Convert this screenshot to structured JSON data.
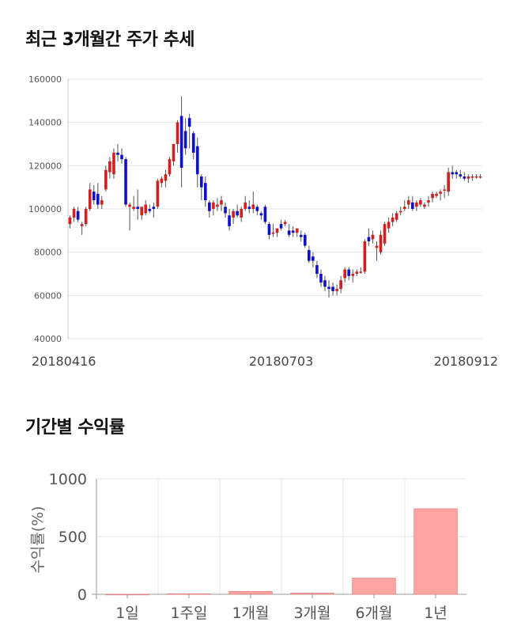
{
  "titles": {
    "price": "최근 3개월간 주가 추세",
    "returns": "기간별 수익률"
  },
  "colors": {
    "up": "#d21f1f",
    "down": "#1010cc",
    "wick": "#555555",
    "bar_fill": "#ffa3a3",
    "bar_stroke": "#e08585",
    "grid": "#e6e6e6"
  },
  "chart_data": [
    {
      "type": "candlestick",
      "title": "최근 3개월간 주가 추세",
      "ylim": [
        40000,
        160000
      ],
      "y_ticks": [
        "160000",
        "140000",
        "120000",
        "100000",
        "80000",
        "60000",
        "40000"
      ],
      "y_tick_values": [
        160000,
        140000,
        120000,
        100000,
        80000,
        60000,
        40000
      ],
      "x_ticks": [
        "20180416",
        "20180703",
        "20180912"
      ],
      "x_tick_index": [
        0,
        53,
        103
      ],
      "grid": true,
      "candles": [
        [
          93000,
          97000,
          91000,
          96000
        ],
        [
          96000,
          101000,
          94000,
          100000
        ],
        [
          99000,
          101000,
          94000,
          95000
        ],
        [
          92000,
          94000,
          88000,
          93000
        ],
        [
          93000,
          101000,
          92000,
          100000
        ],
        [
          100000,
          112000,
          99000,
          109000
        ],
        [
          108000,
          111000,
          102000,
          104000
        ],
        [
          107000,
          112000,
          100000,
          102000
        ],
        [
          102000,
          106000,
          100000,
          104000
        ],
        [
          109000,
          120000,
          108000,
          118000
        ],
        [
          117000,
          124000,
          114000,
          122000
        ],
        [
          116000,
          128000,
          114000,
          126000
        ],
        [
          126000,
          130000,
          122000,
          125000
        ],
        [
          125000,
          128000,
          121000,
          123000
        ],
        [
          123000,
          124000,
          101000,
          102000
        ],
        [
          101000,
          103000,
          90000,
          102000
        ],
        [
          100000,
          106000,
          99000,
          101000
        ],
        [
          101000,
          109000,
          95000,
          100000
        ],
        [
          97000,
          101000,
          95000,
          101000
        ],
        [
          98000,
          104000,
          97000,
          102000
        ],
        [
          100000,
          102000,
          98000,
          99000
        ],
        [
          101000,
          103000,
          96000,
          100000
        ],
        [
          101000,
          114000,
          100000,
          113000
        ],
        [
          112000,
          115000,
          110000,
          114000
        ],
        [
          113000,
          118000,
          110000,
          116000
        ],
        [
          116000,
          124000,
          115000,
          123000
        ],
        [
          122000,
          130000,
          120000,
          130000
        ],
        [
          130000,
          141000,
          126000,
          140000
        ],
        [
          143000,
          152000,
          110000,
          119000
        ],
        [
          136000,
          142000,
          125000,
          128000
        ],
        [
          142000,
          144000,
          128000,
          138000
        ],
        [
          135000,
          136000,
          123000,
          126000
        ],
        [
          129000,
          133000,
          110000,
          116000
        ],
        [
          115000,
          116000,
          104000,
          110000
        ],
        [
          112000,
          115000,
          101000,
          104000
        ],
        [
          103000,
          104000,
          96000,
          99000
        ],
        [
          100000,
          104000,
          97000,
          103000
        ],
        [
          101000,
          105000,
          99000,
          102000
        ],
        [
          102000,
          106000,
          99000,
          104000
        ],
        [
          101000,
          103000,
          96000,
          98000
        ],
        [
          97000,
          100000,
          90000,
          92000
        ],
        [
          96000,
          100000,
          93000,
          99000
        ],
        [
          99000,
          102000,
          96000,
          97000
        ],
        [
          96000,
          101000,
          94000,
          100000
        ],
        [
          100000,
          106000,
          99000,
          103000
        ],
        [
          101000,
          104000,
          98000,
          100000
        ],
        [
          100000,
          108000,
          98000,
          102000
        ],
        [
          101000,
          102000,
          97000,
          99000
        ],
        [
          98000,
          99000,
          95000,
          97000
        ],
        [
          101000,
          102000,
          93000,
          94000
        ],
        [
          93000,
          94000,
          86000,
          88000
        ],
        [
          89000,
          93000,
          87000,
          89000
        ],
        [
          89000,
          91000,
          87000,
          91000
        ],
        [
          93000,
          95000,
          90000,
          91000
        ],
        [
          93000,
          95000,
          92000,
          94000
        ],
        [
          90000,
          93000,
          87000,
          88000
        ],
        [
          90000,
          92000,
          87000,
          89000
        ],
        [
          89000,
          91000,
          87000,
          91000
        ],
        [
          88000,
          90000,
          85000,
          87000
        ],
        [
          88000,
          89000,
          82000,
          83000
        ],
        [
          81000,
          83000,
          75000,
          76000
        ],
        [
          78000,
          80000,
          73000,
          76000
        ],
        [
          74000,
          76000,
          68000,
          70000
        ],
        [
          70000,
          72000,
          64000,
          66000
        ],
        [
          67000,
          69000,
          62000,
          64000
        ],
        [
          64000,
          67000,
          59000,
          63000
        ],
        [
          64000,
          66000,
          60000,
          62000
        ],
        [
          62000,
          65000,
          60000,
          63000
        ],
        [
          63000,
          69000,
          61000,
          67000
        ],
        [
          68000,
          73000,
          66000,
          72000
        ],
        [
          72000,
          73000,
          67000,
          69000
        ],
        [
          69000,
          72000,
          66000,
          70000
        ],
        [
          70000,
          72000,
          69000,
          71000
        ],
        [
          71000,
          73000,
          70000,
          71000
        ],
        [
          71000,
          86000,
          70000,
          85000
        ],
        [
          87000,
          91000,
          83000,
          85000
        ],
        [
          86000,
          90000,
          84000,
          88000
        ],
        [
          82000,
          85000,
          76000,
          83000
        ],
        [
          80000,
          90000,
          79000,
          88000
        ],
        [
          84000,
          94000,
          83000,
          93000
        ],
        [
          91000,
          96000,
          89000,
          94000
        ],
        [
          94000,
          98000,
          92000,
          96000
        ],
        [
          95000,
          99000,
          94000,
          98000
        ],
        [
          99000,
          101000,
          97000,
          99000
        ],
        [
          100000,
          104000,
          99000,
          101000
        ],
        [
          102000,
          106000,
          100000,
          104000
        ],
        [
          103000,
          106000,
          99000,
          100000
        ],
        [
          101000,
          104000,
          99000,
          103000
        ],
        [
          102000,
          105000,
          101000,
          104000
        ],
        [
          101000,
          103000,
          100000,
          102000
        ],
        [
          103000,
          106000,
          101000,
          104000
        ],
        [
          105000,
          108000,
          103000,
          107000
        ],
        [
          106000,
          108000,
          105000,
          107000
        ],
        [
          107000,
          109000,
          104000,
          108000
        ],
        [
          109000,
          111000,
          105000,
          109000
        ],
        [
          108000,
          119000,
          106000,
          117000
        ],
        [
          117000,
          120000,
          114000,
          116000
        ],
        [
          117000,
          118000,
          114000,
          116000
        ],
        [
          116000,
          118000,
          114000,
          115000
        ],
        [
          115000,
          117000,
          113000,
          114000
        ],
        [
          114000,
          116000,
          112000,
          115000
        ],
        [
          115000,
          116000,
          113000,
          115000
        ],
        [
          115000,
          116000,
          114000,
          115000
        ],
        [
          115000,
          116000,
          114000,
          115000
        ]
      ]
    },
    {
      "type": "bar",
      "title": "기간별 수익률",
      "ylabel": "수익률(%)",
      "ylim": [
        0,
        1000
      ],
      "y_ticks": [
        "0",
        "500",
        "1000"
      ],
      "y_tick_values": [
        0,
        500,
        1000
      ],
      "categories": [
        "1일",
        "1주일",
        "1개월",
        "3개월",
        "6개월",
        "1년"
      ],
      "values": [
        0.5,
        5,
        25,
        10,
        140,
        740
      ],
      "grid": true
    }
  ]
}
